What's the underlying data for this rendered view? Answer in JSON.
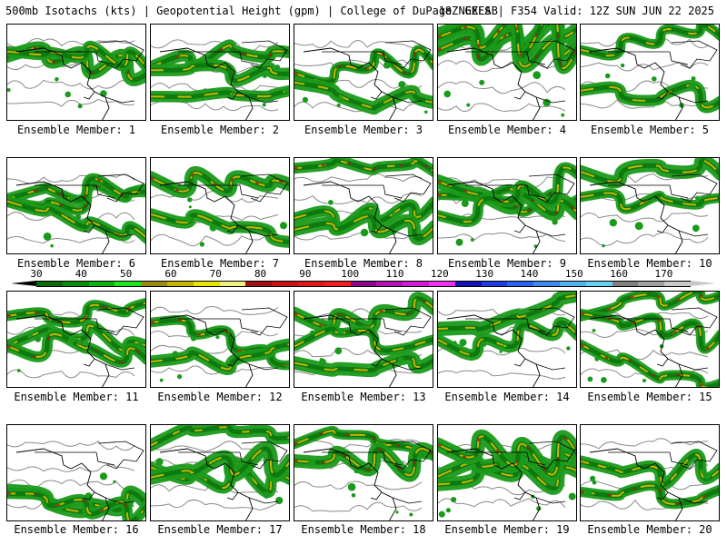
{
  "header": {
    "left": "500mb Isotachs (kts) | Geopotential Height (gpm) | College of DuPage NEXLAB",
    "right": "18Z GEFS | F354 Valid: 12Z SUN JUN 22 2025"
  },
  "members": [
    {
      "label": "Ensemble Member: 1"
    },
    {
      "label": "Ensemble Member: 2"
    },
    {
      "label": "Ensemble Member: 3"
    },
    {
      "label": "Ensemble Member: 4"
    },
    {
      "label": "Ensemble Member: 5"
    },
    {
      "label": "Ensemble Member: 6"
    },
    {
      "label": "Ensemble Member: 7"
    },
    {
      "label": "Ensemble Member: 8"
    },
    {
      "label": "Ensemble Member: 9"
    },
    {
      "label": "Ensemble Member: 10"
    },
    {
      "label": "Ensemble Member: 11"
    },
    {
      "label": "Ensemble Member: 12"
    },
    {
      "label": "Ensemble Member: 13"
    },
    {
      "label": "Ensemble Member: 14"
    },
    {
      "label": "Ensemble Member: 15"
    },
    {
      "label": "Ensemble Member: 16"
    },
    {
      "label": "Ensemble Member: 17"
    },
    {
      "label": "Ensemble Member: 18"
    },
    {
      "label": "Ensemble Member: 19"
    },
    {
      "label": "Ensemble Member: 20"
    }
  ],
  "colorbar": {
    "tick_labels": [
      "30",
      "40",
      "50",
      "60",
      "70",
      "80",
      "90",
      "100",
      "110",
      "120",
      "130",
      "140",
      "150",
      "160",
      "170"
    ],
    "colors": [
      "#0a6a0a",
      "#0c8c0c",
      "#10b010",
      "#1ee61e",
      "#9a8a1a",
      "#c8b400",
      "#e6e600",
      "#f0f080",
      "#a01010",
      "#c81414",
      "#e01818",
      "#f01e1e",
      "#8c0a8c",
      "#b414b4",
      "#d21ed2",
      "#f032f0",
      "#1414b4",
      "#1e3ce6",
      "#2864f0",
      "#3c8cf0",
      "#50b4f0",
      "#64d2f0",
      "#808080",
      "#a0a0a0",
      "#c8c8c8"
    ]
  },
  "map_colors": {
    "jet_low": "#1a9a1a",
    "jet_mid": "#0d7a0d",
    "jet_core": "#c8b400",
    "jet_max": "#b01414",
    "contour": "#8a8a8a",
    "coast": "#000000"
  }
}
